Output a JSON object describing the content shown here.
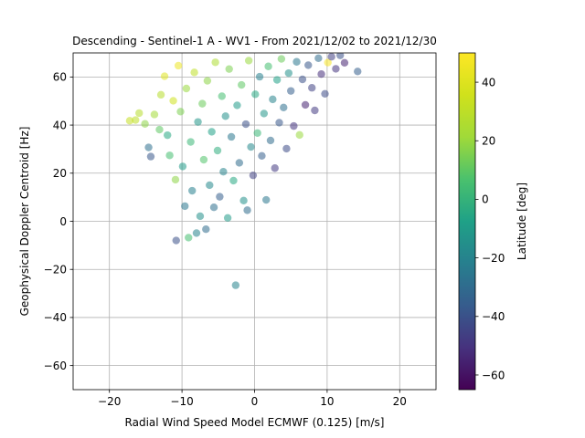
{
  "chart_data": {
    "type": "scatter",
    "title": "Descending - Sentinel-1 A - WV1 - From 2021/12/02 to 2021/12/30",
    "xlabel": "Radial Wind Speed Model ECMWF (0.125) [m/s]",
    "ylabel": "Geophysical Doppler Centroid [Hz]",
    "xlim": [
      -25,
      25
    ],
    "ylim": [
      -70,
      70
    ],
    "xticks": [
      -20,
      -10,
      0,
      10,
      20
    ],
    "yticks": [
      -60,
      -40,
      -20,
      0,
      20,
      40,
      60
    ],
    "xtick_labels": [
      "−20",
      "−10",
      "0",
      "10",
      "20"
    ],
    "ytick_labels": [
      "−60",
      "−40",
      "−20",
      "0",
      "20",
      "40",
      "60"
    ],
    "grid": true,
    "colormap": "viridis",
    "colorbar": {
      "label": "Latitude [deg]",
      "range": [
        -65,
        50
      ],
      "ticks": [
        -60,
        -40,
        -20,
        0,
        20,
        40
      ],
      "tick_labels": [
        "−60",
        "−40",
        "−20",
        "0",
        "20",
        "40"
      ]
    },
    "points": [
      [
        -16.4,
        42.1,
        30
      ],
      [
        -17.2,
        41.8,
        32
      ],
      [
        -15.9,
        45.0,
        28
      ],
      [
        -15.1,
        40.5,
        18
      ],
      [
        -14.6,
        30.7,
        -28
      ],
      [
        -14.3,
        26.9,
        -38
      ],
      [
        -13.8,
        44.4,
        22
      ],
      [
        -13.1,
        38.1,
        10
      ],
      [
        -12.9,
        52.6,
        28
      ],
      [
        -12.4,
        60.3,
        40
      ],
      [
        -12.0,
        35.8,
        -5
      ],
      [
        -11.7,
        27.4,
        5
      ],
      [
        -11.2,
        50.1,
        35
      ],
      [
        -10.9,
        17.3,
        18
      ],
      [
        -10.8,
        -8.0,
        -40
      ],
      [
        -10.5,
        64.7,
        45
      ],
      [
        -10.2,
        45.6,
        15
      ],
      [
        -9.9,
        22.8,
        -10
      ],
      [
        -9.6,
        6.3,
        -25
      ],
      [
        -9.4,
        55.2,
        20
      ],
      [
        -9.1,
        -6.8,
        5
      ],
      [
        -8.8,
        33.0,
        2
      ],
      [
        -8.6,
        12.7,
        -22
      ],
      [
        -8.3,
        61.9,
        30
      ],
      [
        -8.0,
        -4.9,
        -20
      ],
      [
        -7.8,
        41.3,
        -12
      ],
      [
        -7.5,
        2.1,
        -15
      ],
      [
        -7.2,
        48.9,
        12
      ],
      [
        -7.0,
        25.6,
        8
      ],
      [
        -6.7,
        -3.3,
        -30
      ],
      [
        -6.5,
        58.4,
        18
      ],
      [
        -6.2,
        15.0,
        -18
      ],
      [
        -5.9,
        37.2,
        -8
      ],
      [
        -5.6,
        5.8,
        -28
      ],
      [
        -5.4,
        66.1,
        25
      ],
      [
        -5.1,
        29.4,
        -2
      ],
      [
        -4.8,
        10.2,
        -35
      ],
      [
        -4.5,
        52.0,
        5
      ],
      [
        -4.3,
        20.6,
        -20
      ],
      [
        -4.0,
        43.7,
        -15
      ],
      [
        -3.7,
        1.4,
        -10
      ],
      [
        -3.5,
        63.3,
        15
      ],
      [
        -3.2,
        35.1,
        -25
      ],
      [
        -2.9,
        16.9,
        -5
      ],
      [
        -2.6,
        -26.6,
        -20
      ],
      [
        -2.4,
        48.2,
        -10
      ],
      [
        -2.1,
        24.3,
        -30
      ],
      [
        -1.8,
        56.7,
        10
      ],
      [
        -1.5,
        8.6,
        -15
      ],
      [
        -1.2,
        40.4,
        -40
      ],
      [
        -1.0,
        4.6,
        -30
      ],
      [
        -0.8,
        66.8,
        20
      ],
      [
        -0.5,
        30.9,
        -18
      ],
      [
        -0.2,
        19.1,
        -45
      ],
      [
        0.1,
        52.8,
        -5
      ],
      [
        0.4,
        36.7,
        2
      ],
      [
        0.7,
        60.1,
        -22
      ],
      [
        1.0,
        27.2,
        -35
      ],
      [
        1.3,
        44.8,
        -12
      ],
      [
        1.6,
        8.9,
        -25
      ],
      [
        1.9,
        64.4,
        5
      ],
      [
        2.2,
        33.6,
        -30
      ],
      [
        2.5,
        50.7,
        -20
      ],
      [
        2.8,
        22.1,
        -48
      ],
      [
        3.1,
        58.8,
        -8
      ],
      [
        3.4,
        41.0,
        -38
      ],
      [
        3.7,
        67.5,
        12
      ],
      [
        4.0,
        47.3,
        -28
      ],
      [
        4.4,
        30.2,
        -42
      ],
      [
        4.7,
        61.6,
        -15
      ],
      [
        5.0,
        54.2,
        -35
      ],
      [
        5.4,
        39.6,
        -50
      ],
      [
        5.8,
        66.3,
        -25
      ],
      [
        6.2,
        35.9,
        20
      ],
      [
        6.6,
        59.0,
        -40
      ],
      [
        7.0,
        48.4,
        -55
      ],
      [
        7.4,
        64.9,
        -38
      ],
      [
        7.9,
        55.5,
        -45
      ],
      [
        8.3,
        46.1,
        -48
      ],
      [
        8.8,
        67.8,
        -30
      ],
      [
        9.2,
        61.2,
        -52
      ],
      [
        9.7,
        53.0,
        -42
      ],
      [
        10.1,
        66.0,
        48
      ],
      [
        10.6,
        68.4,
        -46
      ],
      [
        11.2,
        63.4,
        -50
      ],
      [
        11.8,
        69.0,
        -40
      ],
      [
        12.4,
        65.9,
        -55
      ],
      [
        14.2,
        62.3,
        -35
      ]
    ]
  }
}
